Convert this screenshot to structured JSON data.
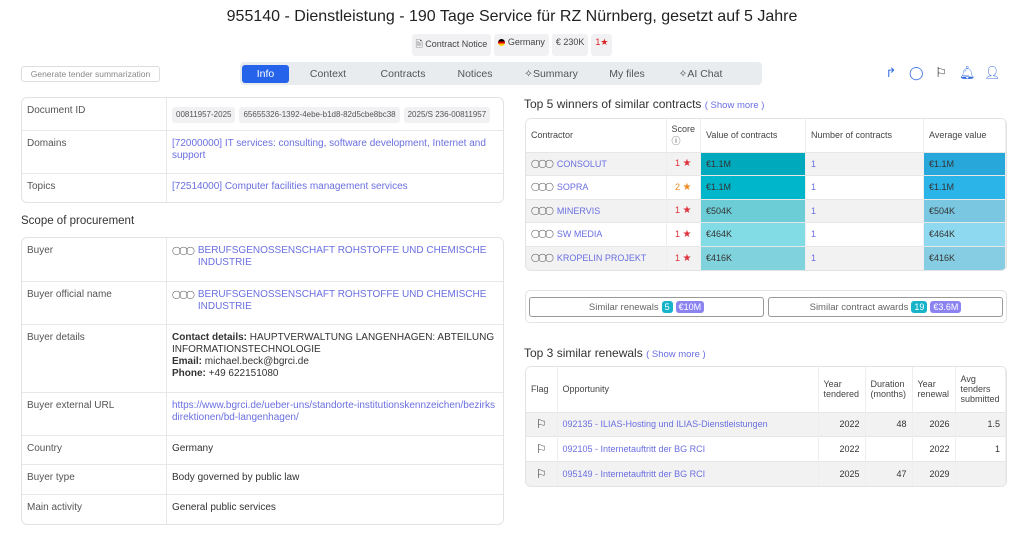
{
  "header": {
    "title": "955140 - Dienstleistung - 190 Tage Service für RZ Nürnberg, gesetzt auf 5 Jahre",
    "badges": {
      "type": "Contract Notice",
      "country": "Germany",
      "value": "€ 230K",
      "score": "1"
    }
  },
  "generate_label": "Generate tender summarization",
  "tabs": [
    "Info",
    "Context",
    "Contracts",
    "Notices",
    "Summary",
    "My files",
    "AI Chat"
  ],
  "active_tab": "Info",
  "actions": [
    "share-icon",
    "comment-icon",
    "flag-icon",
    "bell-icon",
    "add-user-icon"
  ],
  "info": {
    "document_id_label": "Document ID",
    "document_ids": [
      "00811957-2025",
      "65655326-1392-4ebe-b1d8-82d5cbe8bc38",
      "2025/S 236-00811957"
    ],
    "domains_label": "Domains",
    "domains": "[72000000] IT services: consulting, software development, Internet and support",
    "topics_label": "Topics",
    "topics": "[72514000] Computer facilities management services"
  },
  "scope": {
    "title": "Scope of procurement",
    "buyer_label": "Buyer",
    "buyer": "BERUFSGENOSSENSCHAFT ROHSTOFFE UND CHEMISCHE INDUSTRIE",
    "official_label": "Buyer official name",
    "official": "BERUFSGENOSSENSCHAFT ROHSTOFFE UND CHEMISCHE INDUSTRIE",
    "details_label": "Buyer details",
    "contact_key": "Contact details:",
    "contact": " HAUPTVERWALTUNG LANGENHAGEN: ABTEILUNG INFORMATIONSTECHNOLOGIE",
    "email_key": "Email:",
    "email": " michael.beck@bgrci.de",
    "phone_key": "Phone:",
    "phone": " +49 622151080",
    "url_label": "Buyer external URL",
    "url": "https://www.bgrci.de/ueber-uns/standorte-institutionskennzeichen/bezirksdirektionen/bd-langenhagen/",
    "country_label": "Country",
    "country": "Germany",
    "type_label": "Buyer type",
    "type": "Body governed by public law",
    "activity_label": "Main activity",
    "activity": "General public services"
  },
  "winners": {
    "title": "Top 5 winners of similar contracts",
    "show_more": "( Show more )",
    "headers": [
      "Contractor",
      "Score",
      "Value of contracts",
      "Number of contracts",
      "Average value"
    ],
    "rows": [
      {
        "name": "CONSOLUT",
        "score": "1",
        "score_color": "#e0303a",
        "value": "€1.1M",
        "value_color": "#00a9bc",
        "count": "1",
        "avg": "€1.1M",
        "avg_color": "#28a8da"
      },
      {
        "name": "SOPRA",
        "score": "2",
        "score_color": "#f08a24",
        "value": "€1.1M",
        "value_color": "#00b6ca",
        "count": "1",
        "avg": "€1.1M",
        "avg_color": "#2ab4e8"
      },
      {
        "name": "MINERVIS",
        "score": "1",
        "score_color": "#e0303a",
        "value": "€504K",
        "value_color": "#6ccdd6",
        "count": "1",
        "avg": "€504K",
        "avg_color": "#79c7e1"
      },
      {
        "name": "SW MEDIA",
        "score": "1",
        "score_color": "#e0303a",
        "value": "€464K",
        "value_color": "#82dce6",
        "count": "1",
        "avg": "€464K",
        "avg_color": "#8ed8f0"
      },
      {
        "name": "KROPELIN PROJEKT",
        "score": "1",
        "score_color": "#e0303a",
        "value": "€416K",
        "value_color": "#80d2dc",
        "count": "1",
        "avg": "€416K",
        "avg_color": "#86cde4"
      }
    ]
  },
  "similar": {
    "renewals_label": "Similar renewals",
    "renewals_count": "5",
    "renewals_value": "€10M",
    "awards_label": "Similar contract awards",
    "awards_count": "19",
    "awards_value": "€3.6M"
  },
  "renewals": {
    "title": "Top 3 similar renewals",
    "show_more": "( Show more )",
    "headers": [
      "Flag",
      "Opportunity",
      "Year tendered",
      "Duration (months)",
      "Year renewal",
      "Avg tenders submitted"
    ],
    "rows": [
      {
        "opp": "092135 - ILIAS-Hosting und ILIAS-Dienstleistungen",
        "year": "2022",
        "duration": "48",
        "renewal": "2026",
        "avg": "1.5"
      },
      {
        "opp": "092105 - Internetauftritt der BG RCI",
        "year": "2022",
        "duration": "",
        "renewal": "2022",
        "avg": "1"
      },
      {
        "opp": "095149 - Internetauftritt der BG RCI",
        "year": "2025",
        "duration": "47",
        "renewal": "2029",
        "avg": ""
      }
    ]
  }
}
